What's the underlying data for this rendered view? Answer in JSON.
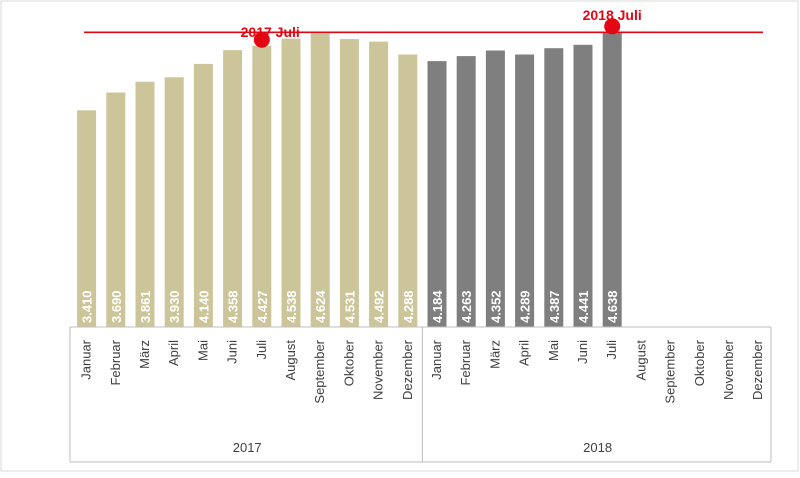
{
  "chart_data": {
    "type": "bar",
    "reference_line": {
      "value": 4638,
      "color": "#e30613"
    },
    "markers": [
      {
        "label": "2017 Juli",
        "group": 0,
        "month_index": 6,
        "value": 4427
      },
      {
        "label": "2018 Juli",
        "group": 1,
        "month_index": 6,
        "value": 4638
      }
    ],
    "groups": [
      {
        "year": "2017",
        "color": "#cdc59a",
        "months": [
          "Januar",
          "Februar",
          "März",
          "April",
          "Mai",
          "Juni",
          "Juli",
          "August",
          "September",
          "Oktober",
          "November",
          "Dezember"
        ],
        "values": [
          3410,
          3690,
          3861,
          3930,
          4140,
          4358,
          4427,
          4538,
          4624,
          4531,
          4492,
          4288
        ],
        "labels": [
          "3.410",
          "3.690",
          "3.861",
          "3.930",
          "4.140",
          "4.358",
          "4.427",
          "4.538",
          "4.624",
          "4.531",
          "4.492",
          "4.288"
        ]
      },
      {
        "year": "2018",
        "color": "#7f7f7f",
        "months": [
          "Januar",
          "Februar",
          "März",
          "April",
          "Mai",
          "Juni",
          "Juli",
          "August",
          "September",
          "Oktober",
          "November",
          "Dezember"
        ],
        "values": [
          4184,
          4263,
          4352,
          4289,
          4387,
          4441,
          4638,
          null,
          null,
          null,
          null,
          null
        ],
        "labels": [
          "4.184",
          "4.263",
          "4.352",
          "4.289",
          "4.387",
          "4.441",
          "4.638",
          "",
          "",
          "",
          "",
          ""
        ]
      }
    ],
    "ylim": [
      0,
      4800
    ]
  }
}
